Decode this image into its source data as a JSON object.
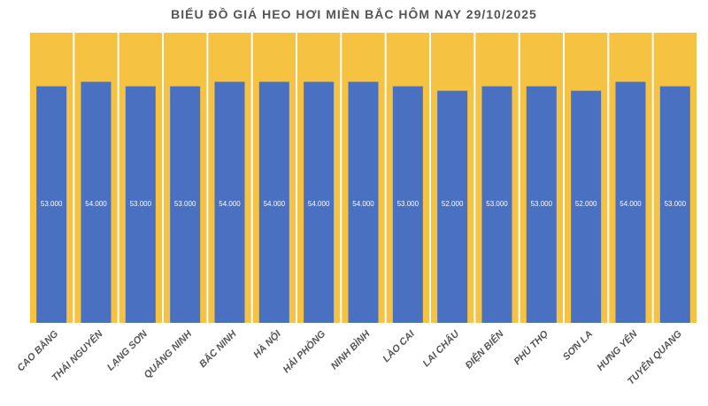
{
  "chart_data": {
    "type": "bar",
    "title": "BIỂU ĐỒ GIÁ HEO HƠI MIỀN BẮC HÔM NAY 29/10/2025",
    "categories": [
      "CAO BẰNG",
      "THÁI NGUYÊN",
      "LẠNG SƠN",
      "QUẢNG NINH",
      "BẮC NINH",
      "HÀ NỘI",
      "HẢI PHÒNG",
      "NINH BÌNH",
      "LÀO CAI",
      "LAI CHÂU",
      "ĐIỆN BIÊN",
      "PHÚ THỌ",
      "SƠN LA",
      "HƯNG YÊN",
      "TUYÊN QUANG"
    ],
    "values": [
      53000,
      54000,
      53000,
      53000,
      54000,
      54000,
      54000,
      54000,
      53000,
      52000,
      53000,
      53000,
      52000,
      54000,
      53000
    ],
    "data_labels": [
      "53.000",
      "54.000",
      "53.000",
      "53.000",
      "54.000",
      "54.000",
      "54.000",
      "54.000",
      "53.000",
      "52.000",
      "53.000",
      "53.000",
      "52.000",
      "54.000",
      "53.000"
    ],
    "ylim": [
      0,
      65000
    ],
    "grid": false,
    "legend": "none",
    "colors": {
      "bar": "#4A70C2",
      "background_band": "#F5C242",
      "title": "#555555",
      "labels": "#555555"
    }
  }
}
